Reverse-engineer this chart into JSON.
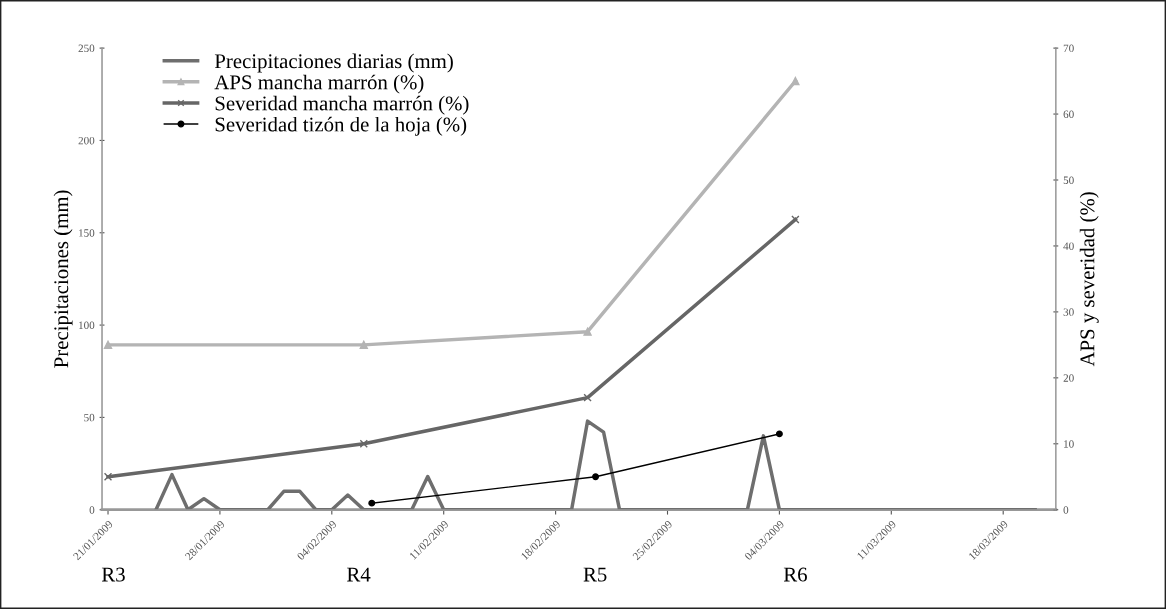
{
  "chart_data": {
    "type": "line",
    "ylabel": "Precipitaciones (mm)",
    "y2label": "APS y severidad (%)",
    "xlim": [
      "2009-01-20T15:00",
      "2009-03-21T07:00"
    ],
    "xticks": [
      {
        "value": "2009-01-21",
        "label": "21/01/2009"
      },
      {
        "value": "2009-01-28",
        "label": "28/01/2009"
      },
      {
        "value": "2009-02-04",
        "label": "04/02/2009"
      },
      {
        "value": "2009-02-11",
        "label": "11/02/2009"
      },
      {
        "value": "2009-02-18",
        "label": "18/02/2009"
      },
      {
        "value": "2009-02-25",
        "label": "25/02/2009"
      },
      {
        "value": "2009-03-04",
        "label": "04/03/2009"
      },
      {
        "value": "2009-03-11",
        "label": "11/03/2009"
      },
      {
        "value": "2009-03-18",
        "label": "18/03/2009"
      }
    ],
    "ylim": [
      0,
      250
    ],
    "yticks": [
      0,
      50,
      100,
      150,
      200,
      250
    ],
    "y2lim": [
      0,
      70
    ],
    "y2ticks": [
      0,
      10,
      20,
      30,
      40,
      50,
      60,
      70
    ],
    "grid": false,
    "legend": "top left",
    "series": [
      {
        "name": "Precipitaciones diarias (mm)",
        "color": "#6e6e6e",
        "marker": "none",
        "x": [
          "2009-01-24",
          "2009-01-25",
          "2009-01-26",
          "2009-01-27",
          "2009-01-28",
          "2009-01-29",
          "2009-01-30",
          "2009-01-31",
          "2009-02-01",
          "2009-02-02",
          "2009-02-03",
          "2009-02-04",
          "2009-02-05",
          "2009-02-06",
          "2009-02-07",
          "2009-02-08",
          "2009-02-09",
          "2009-02-10",
          "2009-02-11",
          "2009-02-12",
          "2009-02-13",
          "2009-02-14",
          "2009-02-15",
          "2009-02-16",
          "2009-02-17",
          "2009-02-18",
          "2009-02-19",
          "2009-02-20",
          "2009-02-21",
          "2009-02-22",
          "2009-02-23",
          "2009-02-24",
          "2009-02-25",
          "2009-02-26",
          "2009-02-27",
          "2009-02-28",
          "2009-03-01",
          "2009-03-02",
          "2009-03-03",
          "2009-03-04",
          "2009-03-05",
          "2009-03-06",
          "2009-03-07",
          "2009-03-08",
          "2009-03-09",
          "2009-03-10",
          "2009-03-11",
          "2009-03-12",
          "2009-03-13",
          "2009-03-14",
          "2009-03-15",
          "2009-03-16",
          "2009-03-17",
          "2009-03-18",
          "2009-03-19",
          "2009-03-20"
        ],
        "values": [
          0,
          19,
          0,
          6,
          0,
          0,
          0,
          0,
          10,
          10,
          0,
          0,
          8,
          0,
          0,
          0,
          0,
          18,
          0,
          0,
          0,
          0,
          0,
          0,
          0,
          0,
          0,
          48,
          42,
          0,
          0,
          0,
          0,
          0,
          0,
          0,
          0,
          0,
          40,
          0,
          0,
          0,
          0,
          0,
          0,
          0,
          0,
          0,
          0,
          0,
          0,
          0,
          0,
          0,
          0,
          0
        ]
      },
      {
        "name": "APS mancha marrón (%)",
        "color": "#b4b4b4",
        "marker": "triangle",
        "axis": "y2",
        "x": [
          "2009-01-21",
          "2009-02-06",
          "2009-02-20",
          "2009-03-05"
        ],
        "values": [
          25,
          25,
          27,
          65
        ]
      },
      {
        "name": "Severidad mancha marrón (%)",
        "color": "#666666",
        "marker": "cross",
        "axis": "y2",
        "x": [
          "2009-01-21",
          "2009-02-06",
          "2009-02-20",
          "2009-03-05"
        ],
        "values": [
          5,
          10,
          17,
          44
        ]
      },
      {
        "name": "Severidad tizón de la hoja (%)",
        "color": "#000000",
        "marker": "circle",
        "axis": "y2",
        "x": [
          "2009-02-06T12:00",
          "2009-02-20T12:00",
          "2009-03-04"
        ],
        "values": [
          1,
          5,
          11.5
        ]
      }
    ],
    "annotations": [
      "R3",
      "R4",
      "R5",
      "R6"
    ]
  }
}
